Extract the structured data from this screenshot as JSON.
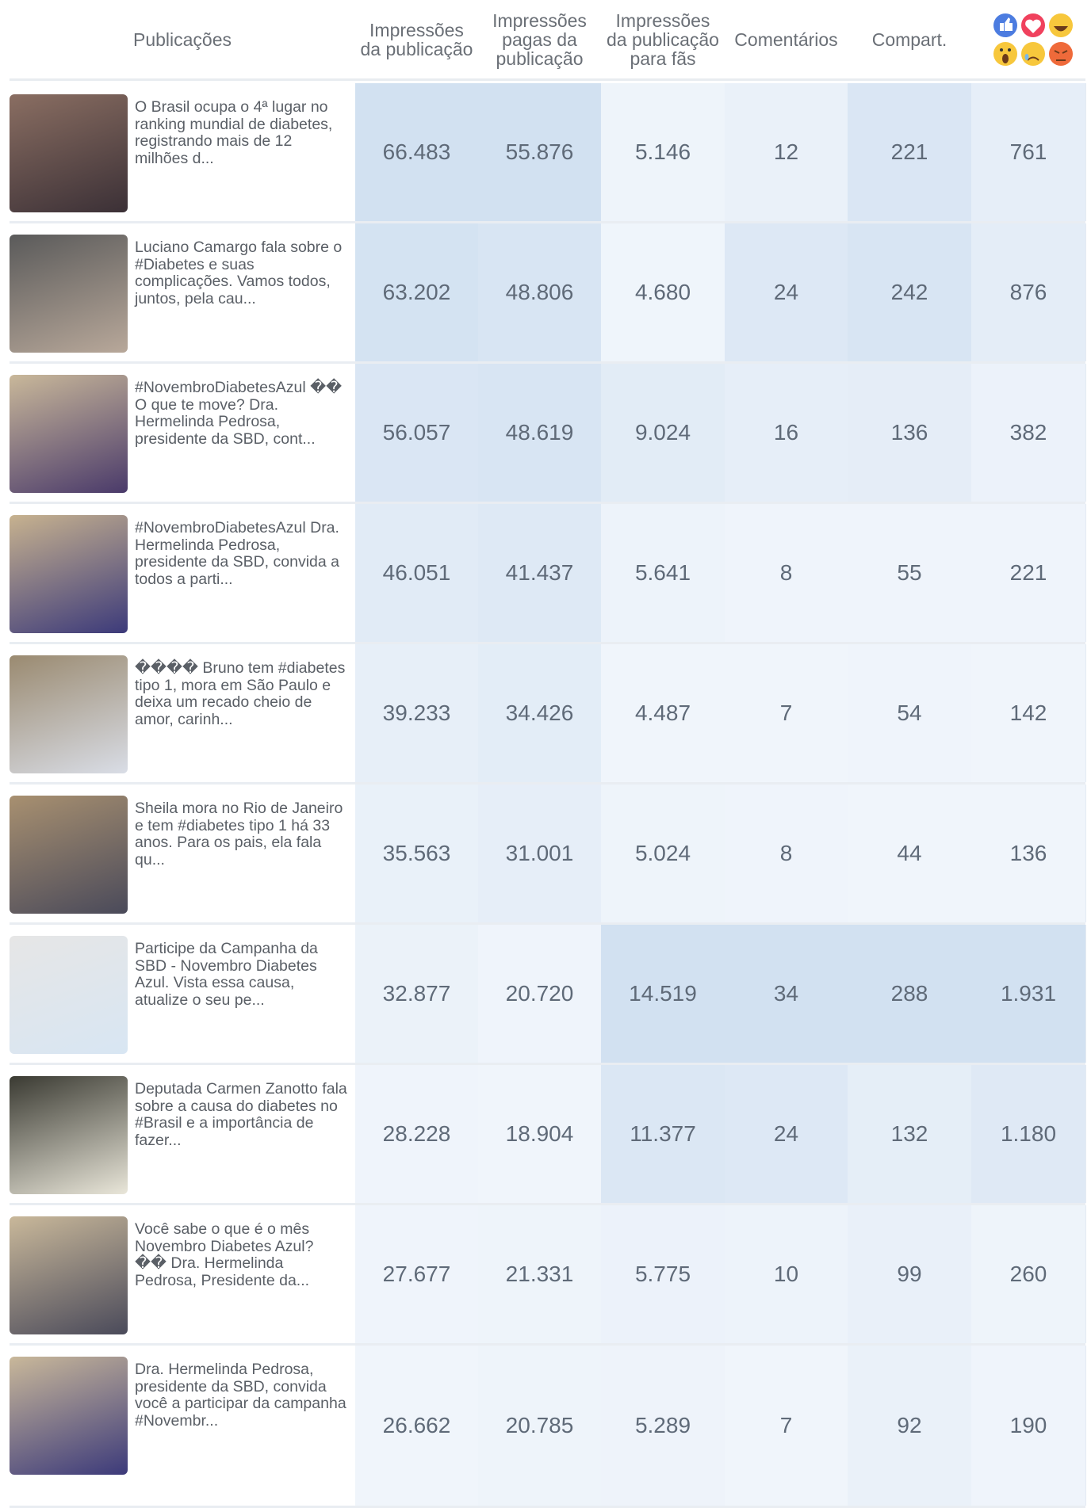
{
  "header": {
    "columns": [
      "Publicações",
      "Impressões\nda publicação",
      "Impressões\npagas da\npublicação",
      "Impressões\nda publicação\npara fãs",
      "Comentários",
      "Compart."
    ]
  },
  "rows": [
    {
      "text": "O Brasil ocupa o 4ª lugar no ranking mundial de diabetes, registrando mais de 12 milhões d...",
      "cells": [
        "66.483",
        "55.876",
        "5.146",
        "12",
        "221",
        "761"
      ]
    },
    {
      "text": "Luciano Camargo fala sobre o #Diabetes e suas complicações. Vamos todos, juntos, pela cau...",
      "cells": [
        "63.202",
        "48.806",
        "4.680",
        "24",
        "242",
        "876"
      ]
    },
    {
      "text": "#NovembroDiabetesAzul �� O que te move? Dra. Hermelinda Pedrosa, presidente da SBD, cont...",
      "cells": [
        "56.057",
        "48.619",
        "9.024",
        "16",
        "136",
        "382"
      ]
    },
    {
      "text": "#NovembroDiabetesAzul Dra. Hermelinda Pedrosa, presidente da SBD, convida a todos a parti...",
      "cells": [
        "46.051",
        "41.437",
        "5.641",
        "8",
        "55",
        "221"
      ]
    },
    {
      "text": "���� Bruno tem #diabetes tipo 1, mora em São Paulo e deixa um recado cheio de amor, carinh...",
      "cells": [
        "39.233",
        "34.426",
        "4.487",
        "7",
        "54",
        "142"
      ]
    },
    {
      "text": "Sheila mora no Rio de Janeiro e tem #diabetes tipo 1 há 33 anos. Para os pais, ela fala qu...",
      "cells": [
        "35.563",
        "31.001",
        "5.024",
        "8",
        "44",
        "136"
      ]
    },
    {
      "text": "Participe da Campanha da SBD - Novembro Diabetes Azul. Vista essa causa, atualize o seu pe...",
      "cells": [
        "32.877",
        "20.720",
        "14.519",
        "34",
        "288",
        "1.931"
      ]
    },
    {
      "text": "Deputada Carmen Zanotto fala sobre a causa do diabetes no #Brasil e a importância de fazer...",
      "cells": [
        "28.228",
        "18.904",
        "11.377",
        "24",
        "132",
        "1.180"
      ]
    },
    {
      "text": "Você sabe o que é o mês Novembro Diabetes Azul? �� Dra. Hermelinda Pedrosa, Presidente da...",
      "cells": [
        "27.677",
        "21.331",
        "5.775",
        "10",
        "99",
        "260"
      ]
    },
    {
      "text": "Dra. Hermelinda Pedrosa, presidente da SBD, convida você a participar da campanha #Novembr...",
      "cells": [
        "26.662",
        "20.785",
        "5.289",
        "7",
        "92",
        "190"
      ]
    }
  ]
}
